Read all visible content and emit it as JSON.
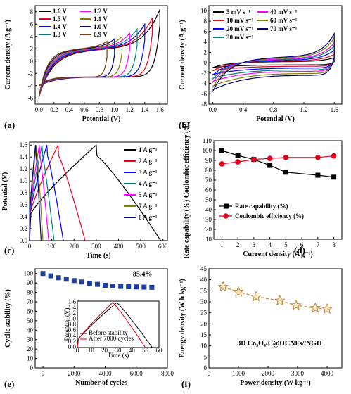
{
  "chart_data": [
    {
      "id": "a",
      "panel_label": "(a)",
      "type": "line",
      "xlabel": "Potential (V)",
      "ylabel": "Current density (A g⁻¹)",
      "xlim": [
        -0.05,
        1.7
      ],
      "ylim": [
        -7,
        9
      ],
      "xticks": [
        0.0,
        0.2,
        0.4,
        0.6,
        0.8,
        1.0,
        1.2,
        1.4,
        1.6
      ],
      "xtick_labels": [
        "0.0",
        "0.2",
        "0.4",
        "0.6",
        "0.8",
        "1.0",
        "1.2",
        "1.4",
        "1.6"
      ],
      "yticks": [
        -6,
        -4,
        -2,
        0,
        2,
        4,
        6,
        8
      ],
      "ytick_labels": [
        "-6",
        "-4",
        "-2",
        "0",
        "2",
        "4",
        "6",
        "8"
      ],
      "legend_position": "top-left",
      "series": [
        {
          "name": "1.6 V",
          "color": "#000000",
          "vmax": 1.6,
          "jmax": 8.4
        },
        {
          "name": "1.5 V",
          "color": "#e3001b",
          "vmax": 1.5,
          "jmax": 7.0
        },
        {
          "name": "1.4 V",
          "color": "#0000ff",
          "vmax": 1.4,
          "jmax": 6.0
        },
        {
          "name": "1.3 V",
          "color": "#008080",
          "vmax": 1.3,
          "jmax": 5.2
        },
        {
          "name": "1.2 V",
          "color": "#ff00ff",
          "vmax": 1.2,
          "jmax": 4.5
        },
        {
          "name": "1.1 V",
          "color": "#808000",
          "vmax": 1.1,
          "jmax": 4.0
        },
        {
          "name": "1.0 V",
          "color": "#000080",
          "vmax": 1.0,
          "jmax": 3.6
        },
        {
          "name": "0.9 V",
          "color": "#804000",
          "vmax": 0.9,
          "jmax": 3.2
        }
      ]
    },
    {
      "id": "b",
      "panel_label": "(b)",
      "type": "line",
      "xlabel": "Potential (V)",
      "ylabel": "Current density (A g⁻¹)",
      "xlim": [
        -0.05,
        1.7
      ],
      "ylim": [
        -8,
        11
      ],
      "xticks": [
        0.0,
        0.4,
        0.8,
        1.2,
        1.6
      ],
      "xtick_labels": [
        "0.0",
        "0.4",
        "0.8",
        "1.2",
        "1.6"
      ],
      "yticks": [
        -8,
        -6,
        -4,
        -2,
        0,
        2,
        4,
        6,
        8,
        10
      ],
      "ytick_labels": [
        "-8",
        "-6",
        "-4",
        "-2",
        "0",
        "2",
        "4",
        "6",
        "8",
        "10"
      ],
      "legend_position": "top-left",
      "series": [
        {
          "name": "5 mV s⁻¹",
          "color": "#000000",
          "scale": 0.6
        },
        {
          "name": "10 mV s⁻¹",
          "color": "#e3001b",
          "scale": 1.0
        },
        {
          "name": "20 mV s⁻¹",
          "color": "#0000ff",
          "scale": 1.5
        },
        {
          "name": "30 mV s⁻¹",
          "color": "#008080",
          "scale": 2.0
        },
        {
          "name": "40 mV s⁻¹",
          "color": "#ff00ff",
          "scale": 2.4
        },
        {
          "name": "60 mV s⁻¹",
          "color": "#808000",
          "scale": 3.0
        },
        {
          "name": "70 mV s⁻¹",
          "color": "#000080",
          "scale": 3.5
        }
      ]
    },
    {
      "id": "c",
      "panel_label": "(c)",
      "type": "line",
      "xlabel": "Time (s)",
      "ylabel": "Potential (V)",
      "xlim": [
        0,
        620
      ],
      "ylim": [
        0,
        1.65
      ],
      "xticks": [
        0,
        100,
        200,
        300,
        400,
        500,
        600
      ],
      "xtick_labels": [
        "0",
        "100",
        "200",
        "300",
        "400",
        "500",
        "600"
      ],
      "yticks": [
        0.0,
        0.2,
        0.4,
        0.6,
        0.8,
        1.0,
        1.2,
        1.4,
        1.6
      ],
      "ytick_labels": [
        "0.0",
        "0.2",
        "0.4",
        "0.6",
        "0.8",
        "1.0",
        "1.2",
        "1.4",
        "1.6"
      ],
      "legend_position": "right",
      "series": [
        {
          "name": "1 A g⁻¹",
          "color": "#000000",
          "t_peak": 300,
          "t_end": 590
        },
        {
          "name": "2 A g⁻¹",
          "color": "#e3001b",
          "t_peak": 128,
          "t_end": 250
        },
        {
          "name": "3 A g⁻¹",
          "color": "#0000ff",
          "t_peak": 78,
          "t_end": 152
        },
        {
          "name": "4 A g⁻¹",
          "color": "#008080",
          "t_peak": 56,
          "t_end": 110
        },
        {
          "name": "5 A g⁻¹",
          "color": "#ff00ff",
          "t_peak": 44,
          "t_end": 86
        },
        {
          "name": "7 A g⁻¹",
          "color": "#808000",
          "t_peak": 31,
          "t_end": 60
        },
        {
          "name": "8 A g⁻¹",
          "color": "#000080",
          "t_peak": 27,
          "t_end": 52
        }
      ]
    },
    {
      "id": "d",
      "panel_label": "(d)",
      "type": "line",
      "xlabel": "Current density (A g⁻¹)",
      "ylabel": "Rate capability (%)  Coulombic efficiency (%)",
      "xlim": [
        0.5,
        8.5
      ],
      "ylim": [
        10,
        110
      ],
      "xticks": [
        1,
        2,
        3,
        4,
        5,
        6,
        7,
        8
      ],
      "xtick_labels": [
        "1",
        "2",
        "3",
        "4",
        "5",
        "6",
        "7",
        "8"
      ],
      "yticks": [
        10,
        20,
        30,
        40,
        50,
        60,
        70,
        80,
        90,
        100,
        110
      ],
      "ytick_labels": [
        "10",
        "20",
        "30",
        "40",
        "50",
        "60",
        "70",
        "80",
        "90",
        "100",
        "110"
      ],
      "legend_position": "center-right",
      "series": [
        {
          "name": "Rate capability (%)",
          "color": "#000000",
          "marker": "square",
          "x": [
            1,
            2,
            3,
            4,
            5,
            7,
            8
          ],
          "y": [
            100,
            95,
            91,
            85,
            78,
            75,
            73
          ]
        },
        {
          "name": "Coulombic efficiency (%)",
          "color": "#e3001b",
          "marker": "circle",
          "x": [
            1,
            2,
            3,
            4,
            5,
            7,
            8
          ],
          "y": [
            86.5,
            88.5,
            91,
            92,
            93,
            93,
            94.5
          ]
        }
      ]
    },
    {
      "id": "e",
      "panel_label": "(e)",
      "type": "scatter",
      "xlabel": "Number of cycles",
      "ylabel": "Cyclic stability (%)",
      "xlim": [
        -500,
        8000
      ],
      "ylim": [
        0,
        105
      ],
      "xticks": [
        0,
        2000,
        4000,
        6000,
        8000
      ],
      "xtick_labels": [
        "0",
        "2000",
        "4000",
        "6000",
        "8000"
      ],
      "yticks": [
        0,
        10,
        20,
        30,
        40,
        50,
        60,
        70,
        80,
        90,
        100
      ],
      "ytick_labels": [
        "0",
        "10",
        "20",
        "30",
        "40",
        "50",
        "60",
        "70",
        "80",
        "90",
        "100"
      ],
      "annotation": "85.4%",
      "series": [
        {
          "name": "",
          "color": "#1f3f9e",
          "marker": "square",
          "x": [
            0,
            500,
            1000,
            1500,
            2000,
            2500,
            3000,
            3500,
            4000,
            4500,
            5000,
            5500,
            6000,
            6500,
            7000
          ],
          "y": [
            100,
            97.5,
            95.5,
            94,
            92.5,
            91,
            89.5,
            88.5,
            87.5,
            86.8,
            86.3,
            86,
            85.8,
            85.6,
            85.4
          ]
        }
      ],
      "inset": {
        "xlabel": "Time (s)",
        "ylabel": "Potential (V)",
        "xlim": [
          0,
          60
        ],
        "ylim": [
          0,
          1.65
        ],
        "xticks": [
          0,
          10,
          20,
          30,
          40,
          50,
          60
        ],
        "xtick_labels": [
          "0",
          "10",
          "20",
          "30",
          "40",
          "50",
          "60"
        ],
        "yticks": [
          0.0,
          0.2,
          0.4,
          0.6,
          0.8,
          1.0,
          1.2,
          1.4,
          1.6
        ],
        "ytick_labels": [
          "0.0",
          "0.2",
          "0.4",
          "0.6",
          "0.8",
          "1.0",
          "1.2",
          "1.4",
          "1.6"
        ],
        "series": [
          {
            "name": "Before stability",
            "color": "#000000",
            "t_peak": 29,
            "t_end": 55
          },
          {
            "name": "After 7000 cycles",
            "color": "#e3001b",
            "t_peak": 26,
            "t_end": 50
          }
        ]
      }
    },
    {
      "id": "f",
      "panel_label": "(f)",
      "type": "line",
      "xlabel": "Power density (W kg⁻¹)",
      "ylabel": "Energy density (W h kg⁻¹)",
      "xlim": [
        0,
        4500
      ],
      "ylim": [
        0,
        45
      ],
      "xticks": [
        0,
        1000,
        2000,
        3000,
        4000
      ],
      "xtick_labels": [
        "0",
        "1000",
        "2000",
        "3000",
        "4000"
      ],
      "yticks": [
        0,
        5,
        10,
        15,
        20,
        25,
        30,
        35,
        40,
        45
      ],
      "ytick_labels": [
        "0",
        "5",
        "10",
        "15",
        "20",
        "25",
        "30",
        "35",
        "40",
        "45"
      ],
      "annotation": "3D Co₃O₄/C@HCNFs//NGH",
      "series": [
        {
          "name": "",
          "color": "#c8883a",
          "marker": "star",
          "x": [
            480,
            1000,
            1600,
            2400,
            2950,
            3600,
            4000
          ],
          "y": [
            36.8,
            34.5,
            32.3,
            30.5,
            28.4,
            27.2,
            26.7
          ]
        }
      ]
    }
  ]
}
